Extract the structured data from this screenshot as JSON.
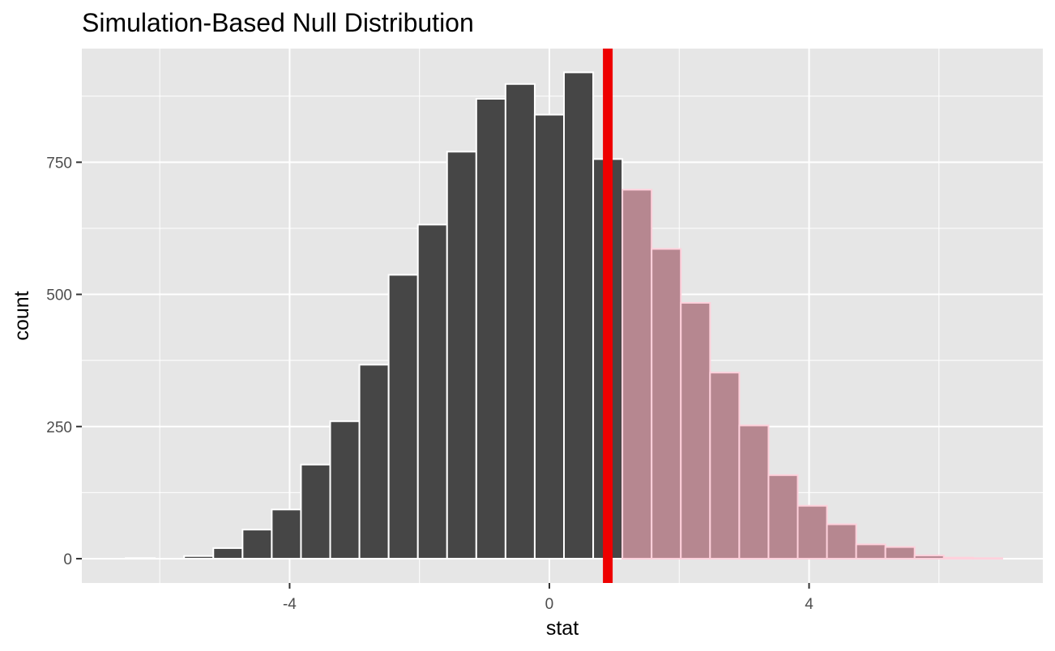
{
  "chart_data": {
    "type": "bar",
    "title": "Simulation-Based Null Distribution",
    "xlabel": "stat",
    "ylabel": "count",
    "xlim": [
      -7.2,
      7.6
    ],
    "ylim": [
      -46,
      965
    ],
    "x_ticks": [
      "-4",
      "0",
      "4"
    ],
    "x_tick_values": [
      -4,
      0,
      4
    ],
    "y_ticks": [
      "0",
      "250",
      "500",
      "750"
    ],
    "y_tick_values": [
      0,
      250,
      500,
      750
    ],
    "grid": true,
    "observed_stat": 0.9,
    "observed_line_color": "#ee0000",
    "bar_color": "#464646",
    "shaded_color": "#b68790",
    "shaded_edge_color": "#ffd1dc",
    "panel_background": "#e6e6e6",
    "bin_width": 0.45,
    "bins": [
      {
        "x": -6.3,
        "count": 1
      },
      {
        "x": -5.4,
        "count": 5
      },
      {
        "x": -4.95,
        "count": 20
      },
      {
        "x": -4.5,
        "count": 55
      },
      {
        "x": -4.05,
        "count": 93
      },
      {
        "x": -3.6,
        "count": 178
      },
      {
        "x": -3.15,
        "count": 260
      },
      {
        "x": -2.7,
        "count": 367
      },
      {
        "x": -2.25,
        "count": 537
      },
      {
        "x": -1.8,
        "count": 632
      },
      {
        "x": -1.35,
        "count": 770
      },
      {
        "x": -0.9,
        "count": 870
      },
      {
        "x": -0.45,
        "count": 898
      },
      {
        "x": 0.0,
        "count": 840
      },
      {
        "x": 0.45,
        "count": 920
      },
      {
        "x": 0.9,
        "count": 756
      },
      {
        "x": 1.35,
        "count": 698
      },
      {
        "x": 1.8,
        "count": 586
      },
      {
        "x": 2.25,
        "count": 484
      },
      {
        "x": 2.7,
        "count": 352
      },
      {
        "x": 3.15,
        "count": 252
      },
      {
        "x": 3.6,
        "count": 158
      },
      {
        "x": 4.05,
        "count": 100
      },
      {
        "x": 4.5,
        "count": 65
      },
      {
        "x": 4.95,
        "count": 27
      },
      {
        "x": 5.4,
        "count": 22
      },
      {
        "x": 5.85,
        "count": 6
      },
      {
        "x": 6.3,
        "count": 2
      },
      {
        "x": 6.75,
        "count": 1
      }
    ]
  }
}
